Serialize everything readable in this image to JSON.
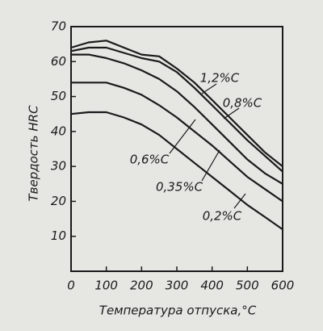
{
  "chart_data": {
    "type": "line",
    "x_label": "Температура отпуска,°C",
    "y_label": "Твердость HRC",
    "x": [
      0,
      50,
      100,
      150,
      200,
      250,
      300,
      350,
      400,
      450,
      500,
      550,
      600
    ],
    "series": [
      {
        "name": "1,2%C",
        "color": "#1a1a1a",
        "values": [
          64,
          65.5,
          66,
          64,
          62,
          61.5,
          58,
          54,
          49,
          44,
          39,
          34,
          30
        ]
      },
      {
        "name": "0,8%C",
        "color": "#1a1a1a",
        "values": [
          63,
          64,
          64,
          62.5,
          61,
          60,
          57,
          52.5,
          47.5,
          42.5,
          37.5,
          33,
          28.5
        ]
      },
      {
        "name": "0,6%C",
        "color": "#1a1a1a",
        "values": [
          62,
          62,
          61,
          59.5,
          57.5,
          55,
          51.5,
          47,
          42,
          37,
          32,
          28,
          25
        ]
      },
      {
        "name": "0,35%C",
        "color": "#1a1a1a",
        "values": [
          54,
          54,
          54,
          52.5,
          50.5,
          47.5,
          44,
          40,
          36,
          31.5,
          27,
          23.5,
          20
        ]
      },
      {
        "name": "0,2%C",
        "color": "#1a1a1a",
        "values": [
          45,
          45.5,
          45.5,
          44,
          42,
          39,
          35,
          31,
          27,
          23,
          19,
          15.5,
          12
        ]
      }
    ],
    "xlim": [
      0,
      600
    ],
    "xticks": [
      0,
      100,
      200,
      300,
      400,
      500,
      600
    ],
    "ylim": [
      0,
      70
    ],
    "yticks": [
      10,
      20,
      30,
      40,
      50,
      60,
      70
    ],
    "grid": false
  }
}
